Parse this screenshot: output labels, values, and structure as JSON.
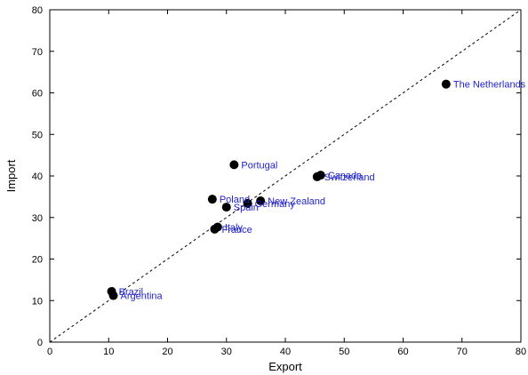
{
  "chart_data": {
    "type": "scatter",
    "title": "",
    "xlabel": "Export",
    "ylabel": "Import",
    "xlim": [
      0,
      80
    ],
    "ylim": [
      0,
      80
    ],
    "xticks": [
      "0",
      "10",
      "20",
      "30",
      "40",
      "50",
      "60",
      "70",
      "80"
    ],
    "yticks": [
      "0",
      "10",
      "20",
      "30",
      "40",
      "50",
      "60",
      "70",
      "80"
    ],
    "grid": false,
    "reference_line": {
      "style": "dashed",
      "from": [
        0,
        0
      ],
      "to": [
        80,
        80
      ]
    },
    "points": [
      {
        "label": "The Netherlands",
        "x": 67.3,
        "y": 62.1
      },
      {
        "label": "Portugal",
        "x": 31.3,
        "y": 42.7
      },
      {
        "label": "Canada",
        "x": 46.0,
        "y": 40.2
      },
      {
        "label": "Switzerland",
        "x": 45.4,
        "y": 39.8
      },
      {
        "label": "Poland",
        "x": 27.6,
        "y": 34.4
      },
      {
        "label": "New Zealand",
        "x": 35.8,
        "y": 34.0
      },
      {
        "label": "Germany",
        "x": 33.6,
        "y": 33.4
      },
      {
        "label": "Spain",
        "x": 30.0,
        "y": 32.5
      },
      {
        "label": "Italy",
        "x": 28.5,
        "y": 27.7
      },
      {
        "label": "France",
        "x": 28.0,
        "y": 27.2
      },
      {
        "label": "Brazil",
        "x": 10.5,
        "y": 12.2
      },
      {
        "label": "Argentina",
        "x": 10.8,
        "y": 11.2
      }
    ],
    "point_color": "#000000",
    "label_color": "#1f1fcc"
  }
}
